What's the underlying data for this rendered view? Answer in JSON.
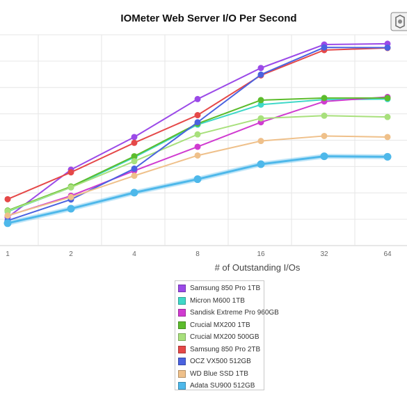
{
  "chart_data": {
    "type": "line",
    "title": "IOMeter Web Server I/O Per Second",
    "xlabel": "# of Outstanding I/Os",
    "ylabel": "",
    "x": [
      "1",
      "2",
      "4",
      "8",
      "16",
      "32",
      "64"
    ],
    "grid": true,
    "legend_position": "bottom",
    "series": [
      {
        "name": "Samsung 850 Pro 1TB",
        "color": "#9b4ae8",
        "values": [
          1.07,
          2.88,
          4.12,
          5.56,
          6.74,
          7.63,
          7.66
        ]
      },
      {
        "name": "Micron M600 1TB",
        "color": "#3fd8c8",
        "values": [
          1.29,
          2.21,
          3.35,
          4.59,
          5.35,
          5.54,
          5.56
        ]
      },
      {
        "name": "Sandisk Extreme Pro 960GB",
        "color": "#d03bd0",
        "values": [
          1.13,
          1.89,
          2.84,
          3.75,
          4.68,
          5.47,
          5.64
        ]
      },
      {
        "name": "Crucial MX200 1TB",
        "color": "#5cbc2c",
        "values": [
          1.33,
          2.24,
          3.39,
          4.63,
          5.52,
          5.6,
          5.6
        ]
      },
      {
        "name": "Crucial MX200 500GB",
        "color": "#a8e07c",
        "values": [
          1.31,
          2.21,
          3.2,
          4.22,
          4.83,
          4.93,
          4.88
        ]
      },
      {
        "name": "Samsung 850 Pro 2TB",
        "color": "#e54848",
        "values": [
          1.76,
          2.78,
          3.9,
          4.95,
          6.46,
          7.42,
          7.5
        ]
      },
      {
        "name": "OCZ VX500 512GB",
        "color": "#4a62e0",
        "values": [
          0.95,
          1.75,
          2.92,
          4.68,
          6.49,
          7.52,
          7.51
        ]
      },
      {
        "name": "WD Blue SSD 1TB",
        "color": "#efc08a",
        "values": [
          1.14,
          1.84,
          2.65,
          3.42,
          3.97,
          4.16,
          4.12
        ]
      },
      {
        "name": "Adata SU900 512GB",
        "color": "#4eb8ea",
        "values": [
          0.85,
          1.4,
          2.01,
          2.52,
          3.09,
          3.39,
          3.37
        ]
      }
    ]
  }
}
